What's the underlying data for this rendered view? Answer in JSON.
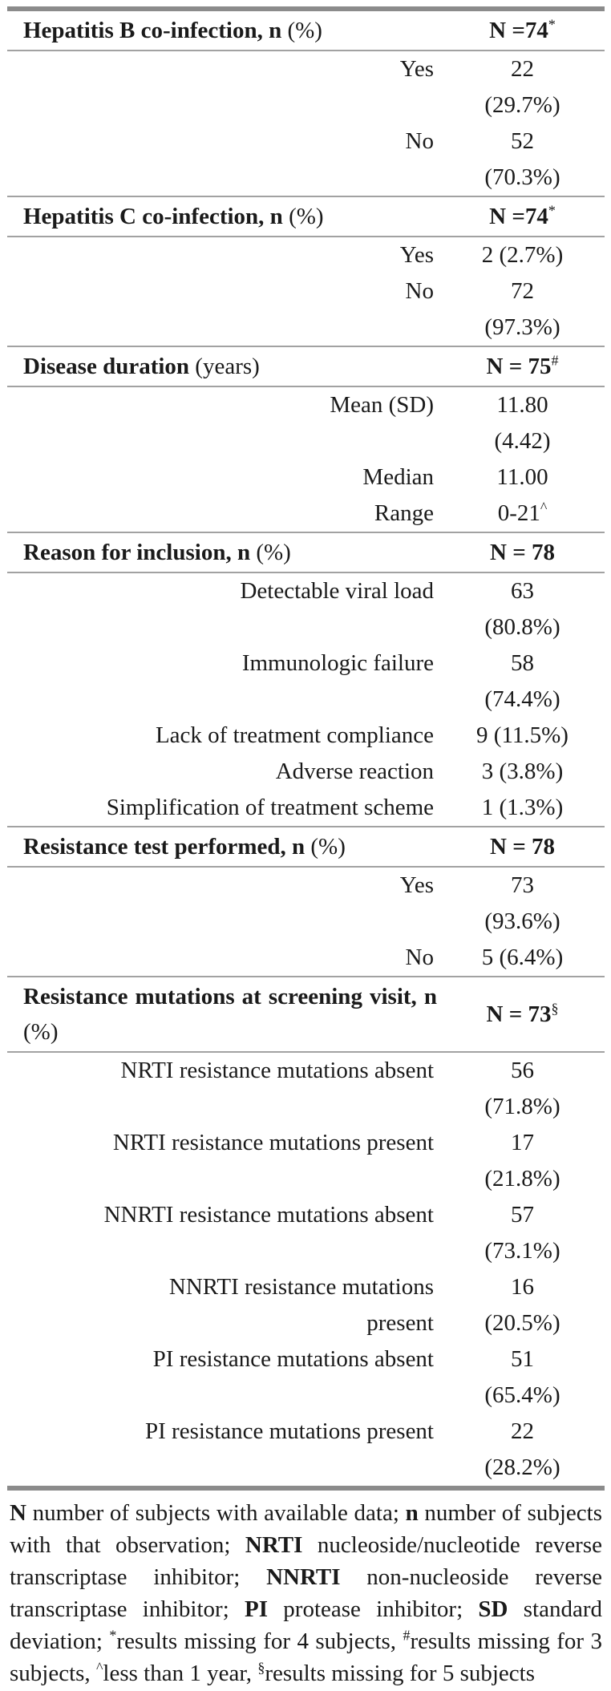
{
  "page": {
    "colors": {
      "background": "#ffffff",
      "text": "#1a1a1a",
      "thick_rule": "#8b8b8b",
      "thin_rule": "#a2a2a2"
    }
  },
  "table": {
    "sections": [
      {
        "header": {
          "title": "Hepatitis B co-infection, n",
          "title_suffix": " (%)",
          "n": "N =74",
          "n_sup": "*"
        },
        "rows": [
          {
            "label": "Yes",
            "value": "22\n(29.7%)"
          },
          {
            "label": "No",
            "value": "52\n(70.3%)"
          }
        ]
      },
      {
        "header": {
          "title": "Hepatitis C co-infection, n",
          "title_suffix": " (%)",
          "n": "N =74",
          "n_sup": "*"
        },
        "rows": [
          {
            "label": "Yes",
            "value": "2 (2.7%)"
          },
          {
            "label": "No",
            "value": "72\n(97.3%)"
          }
        ]
      },
      {
        "header": {
          "title": "Disease duration",
          "title_suffix": " (years)",
          "n": "N = 75",
          "n_sup": "#"
        },
        "rows": [
          {
            "label": "Mean (SD)",
            "value": "11.80\n(4.42)"
          },
          {
            "label": "Median",
            "value": "11.00"
          },
          {
            "label": "Range",
            "value": "0-21",
            "value_sup": "^"
          }
        ]
      },
      {
        "header": {
          "title": "Reason for inclusion, n",
          "title_suffix": " (%)",
          "n": "N = 78",
          "n_sup": ""
        },
        "rows": [
          {
            "label": "Detectable viral load",
            "value": "63\n(80.8%)"
          },
          {
            "label": "Immunologic failure",
            "value": "58\n(74.4%)"
          },
          {
            "label": "Lack of treatment compliance",
            "value": "9 (11.5%)"
          },
          {
            "label": "Adverse reaction",
            "value": "3 (3.8%)"
          },
          {
            "label": "Simplification of treatment scheme",
            "value": "1 (1.3%)"
          }
        ]
      },
      {
        "header": {
          "title": "Resistance test performed, n",
          "title_suffix": " (%)",
          "n": "N = 78",
          "n_sup": ""
        },
        "rows": [
          {
            "label": "Yes",
            "value": "73\n(93.6%)"
          },
          {
            "label": "No",
            "value": "5 (6.4%)"
          }
        ]
      },
      {
        "header": {
          "title": "Resistance mutations at screening visit, n",
          "title_suffix": " (%)",
          "n": "N = 73",
          "n_sup": "§"
        },
        "rows": [
          {
            "label": "NRTI resistance mutations absent",
            "value": "56\n(71.8%)"
          },
          {
            "label": "NRTI resistance mutations present",
            "value": "17\n(21.8%)"
          },
          {
            "label": "NNRTI resistance mutations absent",
            "value": "57\n(73.1%)"
          },
          {
            "label": "NNRTI resistance mutations\npresent",
            "value": "16\n(20.5%)"
          },
          {
            "label": "PI resistance mutations absent",
            "value": "51\n(65.4%)"
          },
          {
            "label": "PI resistance mutations present",
            "value": "22\n(28.2%)"
          }
        ]
      }
    ],
    "footnote": [
      {
        "text": "N",
        "bold": true
      },
      {
        "text": " number of subjects with available data; "
      },
      {
        "text": "n",
        "bold": true
      },
      {
        "text": " number of subjects with that observation; "
      },
      {
        "text": "NRTI",
        "bold": true
      },
      {
        "text": " nucleoside/nucleotide reverse transcriptase inhibitor; "
      },
      {
        "text": "NNRTI",
        "bold": true
      },
      {
        "text": " non-nucleoside reverse transcriptase inhibitor; "
      },
      {
        "text": "PI",
        "bold": true
      },
      {
        "text": " protease inhibitor; "
      },
      {
        "text": "SD",
        "bold": true
      },
      {
        "text": " standard deviation; "
      },
      {
        "text": "*",
        "sup": true
      },
      {
        "text": "results missing for 4 subjects, "
      },
      {
        "text": "#",
        "sup": true
      },
      {
        "text": "results missing for 3 subjects, "
      },
      {
        "text": "^",
        "sup": true
      },
      {
        "text": "less than 1 year, "
      },
      {
        "text": "§",
        "sup": true
      },
      {
        "text": "results missing for 5 subjects"
      }
    ]
  }
}
